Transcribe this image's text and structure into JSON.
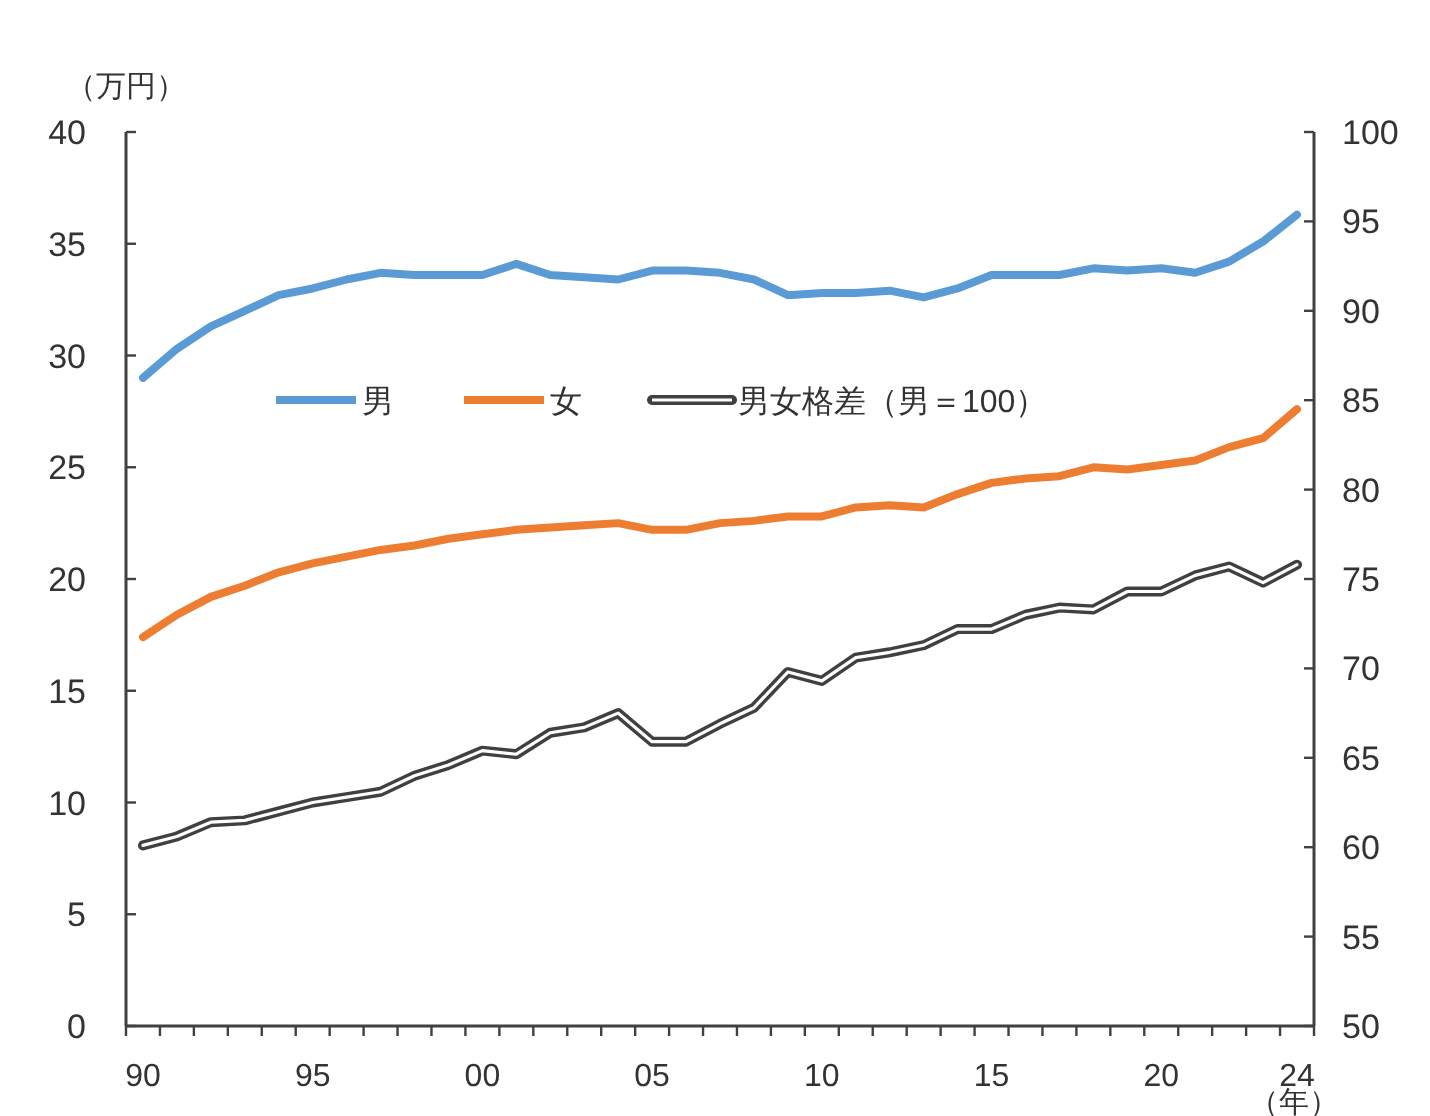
{
  "chart_data": {
    "type": "line",
    "xlabel": "（年）",
    "ylabel": "（万円）",
    "categories": [
      "90",
      null,
      null,
      null,
      null,
      "95",
      null,
      null,
      null,
      null,
      "00",
      null,
      null,
      null,
      null,
      "05",
      null,
      null,
      null,
      null,
      "10",
      null,
      null,
      null,
      null,
      "15",
      null,
      null,
      null,
      null,
      "20",
      null,
      null,
      null,
      "24"
    ],
    "series": [
      {
        "name": "男",
        "color": "#5b9bd5",
        "values": [
          29.0,
          30.3,
          31.3,
          32.0,
          32.7,
          33.0,
          33.4,
          33.7,
          33.6,
          33.6,
          33.6,
          34.1,
          33.6,
          33.5,
          33.4,
          33.8,
          33.8,
          33.7,
          33.4,
          32.7,
          32.8,
          32.8,
          32.9,
          32.6,
          33.0,
          33.6,
          33.6,
          33.6,
          33.9,
          33.8,
          33.9,
          33.7,
          34.2,
          35.1,
          36.3
        ]
      },
      {
        "name": "女",
        "color": "#ed7d31",
        "values": [
          17.4,
          18.4,
          19.2,
          19.7,
          20.3,
          20.7,
          21.0,
          21.3,
          21.5,
          21.8,
          22.0,
          22.2,
          22.3,
          22.4,
          22.5,
          22.2,
          22.2,
          22.5,
          22.6,
          22.8,
          22.8,
          23.2,
          23.3,
          23.2,
          23.8,
          24.3,
          24.5,
          24.6,
          25.0,
          24.9,
          25.1,
          25.3,
          25.9,
          26.3,
          27.6
        ]
      },
      {
        "name": "男女格差（男＝100）",
        "color": "#404040",
        "axis": "y2",
        "values": [
          60.1,
          60.6,
          61.4,
          61.5,
          62.0,
          62.5,
          62.8,
          63.1,
          64.0,
          64.6,
          65.4,
          65.2,
          66.4,
          66.7,
          67.5,
          65.9,
          65.9,
          66.9,
          67.8,
          69.8,
          69.3,
          70.6,
          70.9,
          71.3,
          72.2,
          72.2,
          73.0,
          73.4,
          73.3,
          74.3,
          74.3,
          75.2,
          75.7,
          74.8,
          75.8
        ]
      }
    ],
    "ylim": [
      0,
      40
    ],
    "yticks": [
      0,
      5,
      10,
      15,
      20,
      25,
      30,
      35,
      40
    ],
    "y2lim": [
      50,
      100
    ],
    "y2ticks": [
      50,
      55,
      60,
      65,
      70,
      75,
      80,
      85,
      90,
      95,
      100
    ],
    "legend": "top left"
  }
}
